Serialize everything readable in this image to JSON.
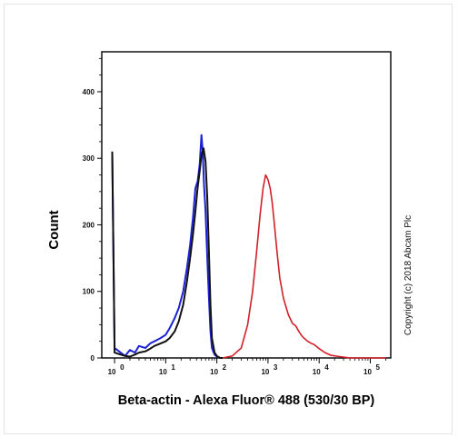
{
  "chart_data": {
    "type": "line",
    "xlabel": "Beta-actin - Alexa Fluor® 488 (530/30 BP)",
    "ylabel": "Count",
    "xscale": "log",
    "x_tick_exponents": [
      0,
      1,
      2,
      3,
      4,
      5
    ],
    "x_tick_labels": [
      "10",
      "10",
      "10",
      "10",
      "10",
      "10"
    ],
    "y_ticks": [
      0,
      100,
      200,
      300,
      400
    ],
    "ylim": [
      0,
      460
    ],
    "grid": false,
    "colors": {
      "blue": "#1c23d4",
      "black": "#111111",
      "red": "#d2202a"
    },
    "series": [
      {
        "color": "blue",
        "x": [
          0.9,
          1,
          1.6,
          2,
          2.5,
          3,
          4,
          5,
          6,
          8,
          10,
          12,
          15,
          18,
          22,
          26,
          30,
          34,
          38,
          42,
          46,
          50,
          53,
          56,
          60,
          65,
          70,
          75,
          80,
          90,
          100,
          115,
          130
        ],
        "y": [
          310,
          15,
          3,
          12,
          8,
          18,
          15,
          22,
          25,
          30,
          35,
          45,
          60,
          75,
          100,
          135,
          170,
          210,
          255,
          265,
          290,
          335,
          310,
          260,
          220,
          150,
          90,
          40,
          15,
          5,
          2,
          0,
          0
        ]
      },
      {
        "color": "black",
        "x": [
          0.9,
          1,
          1.6,
          2,
          2.5,
          3,
          4,
          5,
          6,
          8,
          10,
          12,
          15,
          18,
          22,
          26,
          30,
          34,
          38,
          42,
          46,
          50,
          55,
          60,
          65,
          70,
          75,
          80,
          90,
          100,
          115,
          130
        ],
        "y": [
          310,
          8,
          3,
          2,
          5,
          8,
          10,
          14,
          18,
          22,
          25,
          30,
          40,
          55,
          80,
          115,
          150,
          185,
          220,
          255,
          280,
          305,
          315,
          295,
          240,
          160,
          80,
          30,
          8,
          3,
          0,
          0
        ]
      },
      {
        "color": "red",
        "x": [
          130,
          200,
          300,
          400,
          500,
          600,
          700,
          800,
          900,
          1000,
          1100,
          1200,
          1300,
          1500,
          1700,
          2000,
          2500,
          3000,
          3500,
          4000,
          4500,
          5000,
          6000,
          7000,
          8000,
          10000,
          13000,
          17000,
          25000,
          40000,
          100000,
          200000
        ],
        "y": [
          0,
          3,
          15,
          50,
          100,
          160,
          215,
          255,
          275,
          268,
          255,
          235,
          210,
          160,
          120,
          90,
          65,
          52,
          48,
          40,
          34,
          30,
          25,
          22,
          20,
          14,
          8,
          4,
          2,
          0,
          0,
          0
        ]
      }
    ]
  },
  "copyright": "Copyright (c) 2018 Abcam Plc"
}
